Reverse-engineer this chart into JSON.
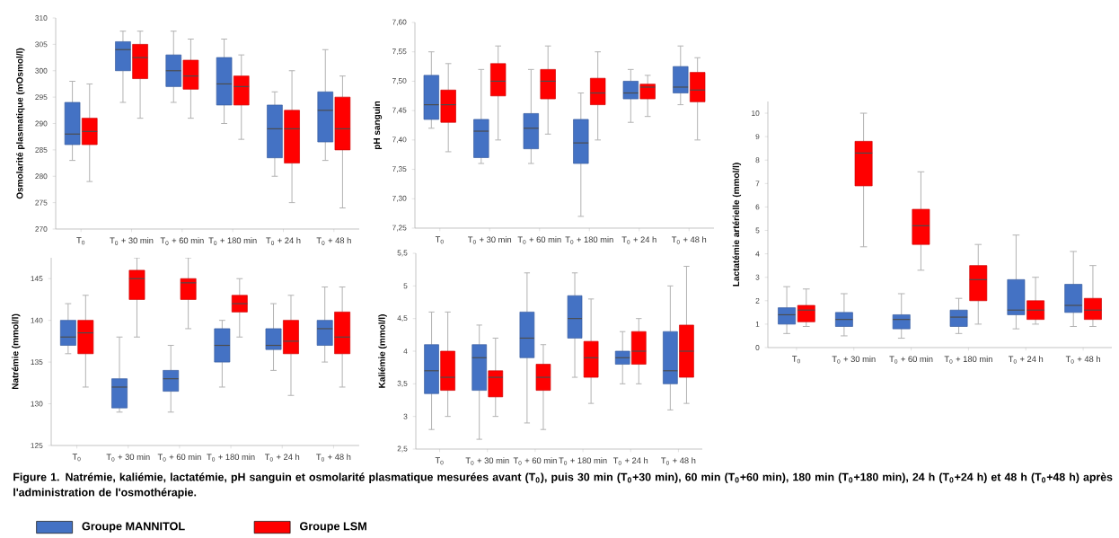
{
  "chart_data": [
    {
      "type": "box",
      "ylabel": "Osmolarité plasmatique (mOsmol/l)",
      "categories": [
        "T$_{0}$",
        "T$_{0}$ + 30 min",
        "T$_{0}$ + 60 min",
        "T$_{0}$ + 180 min",
        "T$_{0}$ + 24 h",
        "T$_{0}$ + 48 h"
      ],
      "ylim": [
        270,
        310
      ],
      "yticks": [
        270,
        275,
        280,
        285,
        290,
        295,
        300,
        305,
        310
      ],
      "legend": "bottom",
      "annotations": [
        "Figure 1. Natrémie, kaliémie, lactatémie, pH sanguin et osmolarité plasmatique mesurées avant (T$_{0}$), puis 30 min (T$_{0}$+30 min), 60 min (T$_{0}$+60 min), 180 min (T$_{0}$+180 min), 24 h (T$_{0}$+24 h) et 48 h (T$_{0}$+48 h) après l'administration de l'osmothérapie."
      ],
      "series": [
        {
          "name": "Groupe MANNITOL",
          "color": "#4472c4",
          "boxes": [
            {
              "low": 283,
              "q1": 286,
              "median": 288,
              "q3": 294,
              "high": 298
            },
            {
              "low": 294,
              "q1": 300,
              "median": 304,
              "q3": 305.5,
              "high": 307.5
            },
            {
              "low": 294,
              "q1": 297,
              "median": 300,
              "q3": 303,
              "high": 307.5
            },
            {
              "low": 290,
              "q1": 293.5,
              "median": 297.5,
              "q3": 302.5,
              "high": 306
            },
            {
              "low": 280,
              "q1": 283.5,
              "median": 289,
              "q3": 293.5,
              "high": 296
            },
            {
              "low": 283,
              "q1": 286.5,
              "median": 292.5,
              "q3": 296,
              "high": 304
            }
          ]
        },
        {
          "name": "Groupe LSM",
          "color": "#ff0000",
          "boxes": [
            {
              "low": 279,
              "q1": 286,
              "median": 288.5,
              "q3": 291,
              "high": 297.5
            },
            {
              "low": 291,
              "q1": 298.5,
              "median": 302.5,
              "q3": 305,
              "high": 307.5
            },
            {
              "low": 291,
              "q1": 296.5,
              "median": 299,
              "q3": 302,
              "high": 306
            },
            {
              "low": 287,
              "q1": 293.5,
              "median": 297,
              "q3": 299,
              "high": 303
            },
            {
              "low": 275,
              "q1": 282.5,
              "median": 289,
              "q3": 292.5,
              "high": 300
            },
            {
              "low": 274,
              "q1": 285,
              "median": 289,
              "q3": 295,
              "high": 299
            }
          ]
        }
      ]
    },
    {
      "type": "box",
      "ylabel": "pH sanguin",
      "categories": [
        "T$_{0}$",
        "T$_{0}$ + 30 min",
        "T$_{0}$ + 60 min",
        "T$_{0}$ + 180 min",
        "T$_{0}$ + 24 h",
        "T$_{0}$ + 48 h"
      ],
      "ylim": [
        7.25,
        7.6
      ],
      "yticks": [
        {
          "value": 7.25,
          "label": "7,25"
        },
        {
          "value": 7.3,
          "label": "7,30"
        },
        {
          "value": 7.35,
          "label": "7,35"
        },
        {
          "value": 7.4,
          "label": "7,40"
        },
        {
          "value": 7.45,
          "label": "7,45"
        },
        {
          "value": 7.5,
          "label": "7,50"
        },
        {
          "value": 7.55,
          "label": "7,55"
        },
        {
          "value": 7.6,
          "label": "7,60"
        }
      ],
      "series": [
        {
          "color": "#4472c4",
          "boxes": [
            {
              "low": 7.42,
              "q1": 7.435,
              "median": 7.46,
              "q3": 7.51,
              "high": 7.55
            },
            {
              "low": 7.36,
              "q1": 7.37,
              "median": 7.415,
              "q3": 7.435,
              "high": 7.52
            },
            {
              "low": 7.36,
              "q1": 7.385,
              "median": 7.42,
              "q3": 7.445,
              "high": 7.52
            },
            {
              "low": 7.27,
              "q1": 7.36,
              "median": 7.395,
              "q3": 7.435,
              "high": 7.48
            },
            {
              "low": 7.43,
              "q1": 7.47,
              "median": 7.48,
              "q3": 7.5,
              "high": 7.52
            },
            {
              "low": 7.46,
              "q1": 7.48,
              "median": 7.49,
              "q3": 7.525,
              "high": 7.56
            }
          ]
        },
        {
          "color": "#ff0000",
          "boxes": [
            {
              "low": 7.38,
              "q1": 7.43,
              "median": 7.46,
              "q3": 7.485,
              "high": 7.53
            },
            {
              "low": 7.4,
              "q1": 7.475,
              "median": 7.5,
              "q3": 7.53,
              "high": 7.56
            },
            {
              "low": 7.41,
              "q1": 7.47,
              "median": 7.5,
              "q3": 7.52,
              "high": 7.56
            },
            {
              "low": 7.4,
              "q1": 7.46,
              "median": 7.48,
              "q3": 7.505,
              "high": 7.55
            },
            {
              "low": 7.44,
              "q1": 7.47,
              "median": 7.49,
              "q3": 7.495,
              "high": 7.51
            },
            {
              "low": 7.4,
              "q1": 7.465,
              "median": 7.485,
              "q3": 7.515,
              "high": 7.54
            }
          ]
        }
      ]
    },
    {
      "type": "box",
      "ylabel": "Lactatémie artérielle (mmol/l)",
      "categories": [
        "T$_{0}$",
        "T$_{0}$ + 30 min",
        "T$_{0}$ + 60 min",
        "T$_{0}$ + 180 min",
        "T$_{0}$ + 24 h",
        "T$_{0}$ + 48 h"
      ],
      "ylim": [
        0,
        10.5
      ],
      "yticks": [
        0,
        1,
        2,
        3,
        4,
        5,
        6,
        7,
        8,
        9,
        10
      ],
      "series": [
        {
          "color": "#4472c4",
          "boxes": [
            {
              "low": 0.6,
              "q1": 1.0,
              "median": 1.4,
              "q3": 1.7,
              "high": 2.6
            },
            {
              "low": 0.5,
              "q1": 0.9,
              "median": 1.2,
              "q3": 1.5,
              "high": 2.3
            },
            {
              "low": 0.4,
              "q1": 0.8,
              "median": 1.2,
              "q3": 1.4,
              "high": 2.3
            },
            {
              "low": 0.6,
              "q1": 0.9,
              "median": 1.3,
              "q3": 1.6,
              "high": 2.1
            },
            {
              "low": 0.8,
              "q1": 1.4,
              "median": 1.6,
              "q3": 2.9,
              "high": 4.8
            },
            {
              "low": 0.9,
              "q1": 1.5,
              "median": 1.8,
              "q3": 2.7,
              "high": 4.1
            }
          ]
        },
        {
          "color": "#ff0000",
          "boxes": [
            {
              "low": 0.9,
              "q1": 1.1,
              "median": 1.6,
              "q3": 1.8,
              "high": 2.5
            },
            {
              "low": 4.3,
              "q1": 6.9,
              "median": 8.3,
              "q3": 8.8,
              "high": 10
            },
            {
              "low": 3.3,
              "q1": 4.4,
              "median": 5.2,
              "q3": 5.9,
              "high": 7.5
            },
            {
              "low": 1.0,
              "q1": 2.0,
              "median": 2.9,
              "q3": 3.5,
              "high": 4.4
            },
            {
              "low": 1.0,
              "q1": 1.2,
              "median": 1.6,
              "q3": 2.0,
              "high": 3.0
            },
            {
              "low": 0.9,
              "q1": 1.2,
              "median": 1.6,
              "q3": 2.1,
              "high": 3.5
            }
          ]
        }
      ]
    },
    {
      "type": "box",
      "ylabel": "Natrémie (mmol/l)",
      "categories": [
        "T$_{0}$",
        "T$_{0}$ + 30 min",
        "T$_{0}$ + 60 min",
        "T$_{0}$ + 180 min",
        "T$_{0}$ + 24 h",
        "T$_{0}$ + 48 h"
      ],
      "ylim": [
        125,
        147.5
      ],
      "yticks": [
        125,
        130,
        135,
        140,
        145
      ],
      "series": [
        {
          "color": "#4472c4",
          "boxes": [
            {
              "low": 136,
              "q1": 137,
              "median": 138,
              "q3": 140,
              "high": 142
            },
            {
              "low": 129,
              "q1": 129.5,
              "median": 132,
              "q3": 133,
              "high": 138
            },
            {
              "low": 129,
              "q1": 131.5,
              "median": 133,
              "q3": 134,
              "high": 137
            },
            {
              "low": 132,
              "q1": 135,
              "median": 137,
              "q3": 139,
              "high": 140
            },
            {
              "low": 134,
              "q1": 136.5,
              "median": 137,
              "q3": 139,
              "high": 142
            },
            {
              "low": 135,
              "q1": 137,
              "median": 139,
              "q3": 140,
              "high": 144
            }
          ]
        },
        {
          "color": "#ff0000",
          "boxes": [
            {
              "low": 132,
              "q1": 136,
              "median": 138.5,
              "q3": 140,
              "high": 143
            },
            {
              "low": 138,
              "q1": 142.5,
              "median": 145,
              "q3": 146,
              "high": 147.5
            },
            {
              "low": 139,
              "q1": 142.5,
              "median": 144.5,
              "q3": 145,
              "high": 147.5
            },
            {
              "low": 138,
              "q1": 141,
              "median": 142,
              "q3": 143,
              "high": 145
            },
            {
              "low": 131,
              "q1": 136,
              "median": 137.5,
              "q3": 140,
              "high": 143
            },
            {
              "low": 132,
              "q1": 136,
              "median": 138,
              "q3": 141,
              "high": 144
            }
          ]
        }
      ]
    },
    {
      "type": "box",
      "ylabel": "Kaliémie (mmol/l)",
      "categories": [
        "T$_{0}$",
        "T$_{0}$ + 30 min",
        "T$_{0}$ + 60 min",
        "T$_{0}$ + 180 min",
        "T$_{0}$ + 24 h",
        "T$_{0}$ + 48 h"
      ],
      "ylim": [
        2.5,
        5.5
      ],
      "yticks": [
        {
          "value": 2.5,
          "label": "2,5"
        },
        3,
        {
          "value": 3.5,
          "label": "3,5"
        },
        4,
        {
          "value": 4.5,
          "label": "4,5"
        },
        5,
        {
          "value": 5.5,
          "label": "5,5"
        }
      ],
      "series": [
        {
          "color": "#4472c4",
          "boxes": [
            {
              "low": 2.8,
              "q1": 3.35,
              "median": 3.7,
              "q3": 4.1,
              "high": 4.6
            },
            {
              "low": 2.65,
              "q1": 3.4,
              "median": 3.9,
              "q3": 4.1,
              "high": 4.4
            },
            {
              "low": 2.9,
              "q1": 3.9,
              "median": 4.2,
              "q3": 4.6,
              "high": 5.2
            },
            {
              "low": 3.6,
              "q1": 4.2,
              "median": 4.5,
              "q3": 4.85,
              "high": 5.2
            },
            {
              "low": 3.5,
              "q1": 3.8,
              "median": 3.9,
              "q3": 4.0,
              "high": 4.3
            },
            {
              "low": 3.1,
              "q1": 3.5,
              "median": 3.7,
              "q3": 4.3,
              "high": 5.0
            }
          ]
        },
        {
          "color": "#ff0000",
          "boxes": [
            {
              "low": 3.0,
              "q1": 3.4,
              "median": 3.6,
              "q3": 4.0,
              "high": 4.6
            },
            {
              "low": 3.0,
              "q1": 3.3,
              "median": 3.6,
              "q3": 3.7,
              "high": 4.2
            },
            {
              "low": 2.8,
              "q1": 3.4,
              "median": 3.6,
              "q3": 3.8,
              "high": 4.1
            },
            {
              "low": 3.2,
              "q1": 3.6,
              "median": 3.9,
              "q3": 4.15,
              "high": 4.8
            },
            {
              "low": 3.5,
              "q1": 3.8,
              "median": 4.0,
              "q3": 4.3,
              "high": 4.5
            },
            {
              "low": 3.2,
              "q1": 3.6,
              "median": 4.0,
              "q3": 4.4,
              "high": 5.3
            }
          ]
        }
      ]
    }
  ]
}
